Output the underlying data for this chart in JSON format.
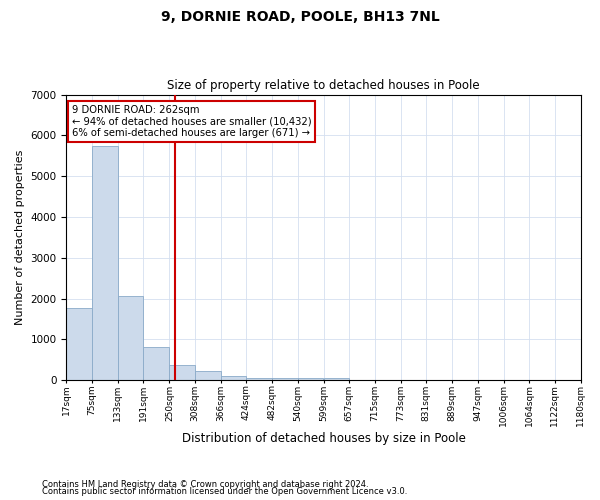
{
  "title1": "9, DORNIE ROAD, POOLE, BH13 7NL",
  "title2": "Size of property relative to detached houses in Poole",
  "xlabel": "Distribution of detached houses by size in Poole",
  "ylabel": "Number of detached properties",
  "bar_color": "#ccdaeb",
  "bar_edge_color": "#8aaac8",
  "grid_color": "#d4dff0",
  "property_line_x": 262,
  "bin_width": 58,
  "bin_starts": [
    17,
    75,
    133,
    191,
    250,
    308,
    366,
    424,
    482,
    540,
    599,
    657,
    715,
    773,
    831,
    889,
    947,
    1006,
    1064,
    1122
  ],
  "bin_labels": [
    "17sqm",
    "75sqm",
    "133sqm",
    "191sqm",
    "250sqm",
    "308sqm",
    "366sqm",
    "424sqm",
    "482sqm",
    "540sqm",
    "599sqm",
    "657sqm",
    "715sqm",
    "773sqm",
    "831sqm",
    "889sqm",
    "947sqm",
    "1006sqm",
    "1064sqm",
    "1122sqm",
    "1180sqm"
  ],
  "bar_heights": [
    1780,
    5750,
    2060,
    820,
    360,
    220,
    100,
    65,
    50,
    45,
    50,
    0,
    0,
    0,
    0,
    0,
    0,
    0,
    0,
    0
  ],
  "ylim": [
    0,
    7000
  ],
  "yticks": [
    0,
    1000,
    2000,
    3000,
    4000,
    5000,
    6000,
    7000
  ],
  "annot_line1": "9 DORNIE ROAD: 262sqm",
  "annot_line2": "← 94% of detached houses are smaller (10,432)",
  "annot_line3": "6% of semi-detached houses are larger (671) →",
  "annot_box_color": "#ffffff",
  "annot_box_edge": "#cc0000",
  "red_line_color": "#cc0000",
  "footnote1": "Contains HM Land Registry data © Crown copyright and database right 2024.",
  "footnote2": "Contains public sector information licensed under the Open Government Licence v3.0."
}
